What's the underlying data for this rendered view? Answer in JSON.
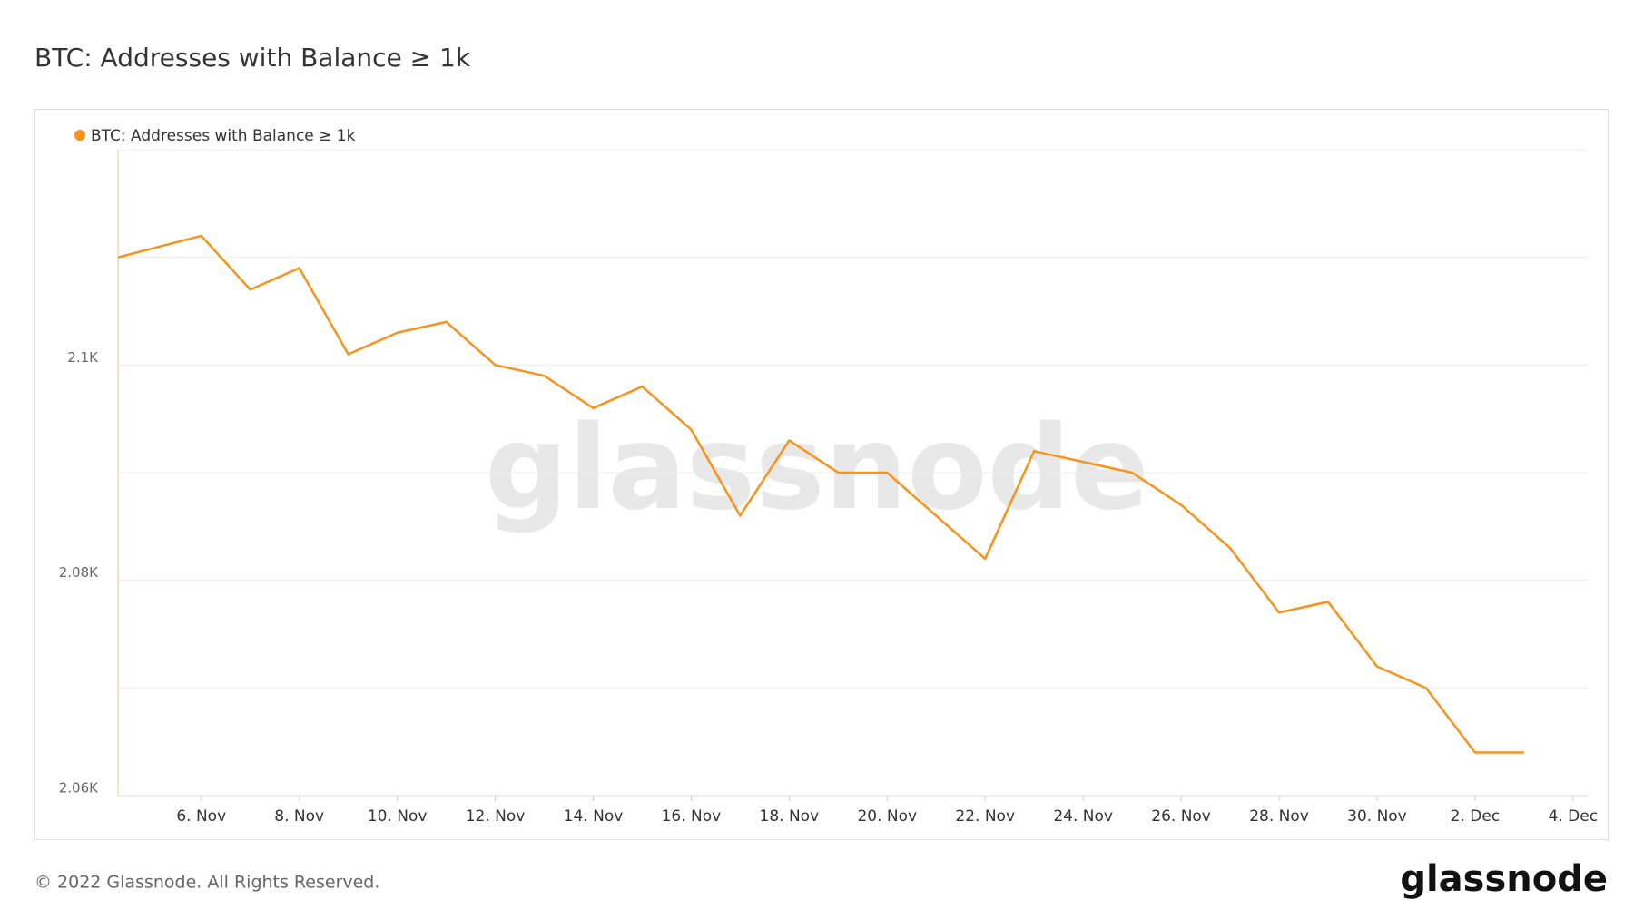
{
  "chart_data": {
    "type": "line",
    "title": "BTC: Addresses with Balance ≥ 1k",
    "watermark": "glassnode",
    "footer": "© 2022 Glassnode. All Rights Reserved.",
    "logo": "glassnode",
    "x": [
      4.3,
      6,
      7,
      8,
      9,
      10,
      11,
      12,
      13,
      14,
      15,
      16,
      17,
      18,
      19,
      20,
      21,
      22,
      23,
      24,
      25,
      26,
      27,
      28,
      29,
      30,
      31,
      32,
      33
    ],
    "series": [
      {
        "name": "BTC: Addresses with Balance ≥ 1k",
        "color": "#f7931a",
        "values": [
          2110,
          2112,
          2107,
          2109,
          2101,
          2103,
          2104,
          2100,
          2099,
          2096,
          2098,
          2094,
          2086,
          2093,
          2090,
          2090,
          2086,
          2082,
          2092,
          2091,
          2090,
          2087,
          2083,
          2077,
          2078,
          2072,
          2070,
          2064,
          2064
        ]
      }
    ],
    "xlim": [
      4.3,
      34.3
    ],
    "xticks": [
      {
        "value": 6,
        "label": "6. Nov"
      },
      {
        "value": 8,
        "label": "8. Nov"
      },
      {
        "value": 10,
        "label": "10. Nov"
      },
      {
        "value": 12,
        "label": "12. Nov"
      },
      {
        "value": 14,
        "label": "14. Nov"
      },
      {
        "value": 16,
        "label": "16. Nov"
      },
      {
        "value": 18,
        "label": "18. Nov"
      },
      {
        "value": 20,
        "label": "20. Nov"
      },
      {
        "value": 22,
        "label": "22. Nov"
      },
      {
        "value": 24,
        "label": "24. Nov"
      },
      {
        "value": 26,
        "label": "26. Nov"
      },
      {
        "value": 28,
        "label": "28. Nov"
      },
      {
        "value": 30,
        "label": "30. Nov"
      },
      {
        "value": 32,
        "label": "2. Dec"
      },
      {
        "value": 34,
        "label": "4. Dec"
      }
    ],
    "ylim": [
      2060,
      2120
    ],
    "yticks": [
      {
        "value": 2060,
        "label": "2.06K"
      },
      {
        "value": 2080,
        "label": "2.08K"
      },
      {
        "value": 2100,
        "label": "2.1K"
      }
    ],
    "ygrid": [
      2060,
      2070,
      2080,
      2090,
      2100,
      2110,
      2120
    ],
    "grid": true
  }
}
